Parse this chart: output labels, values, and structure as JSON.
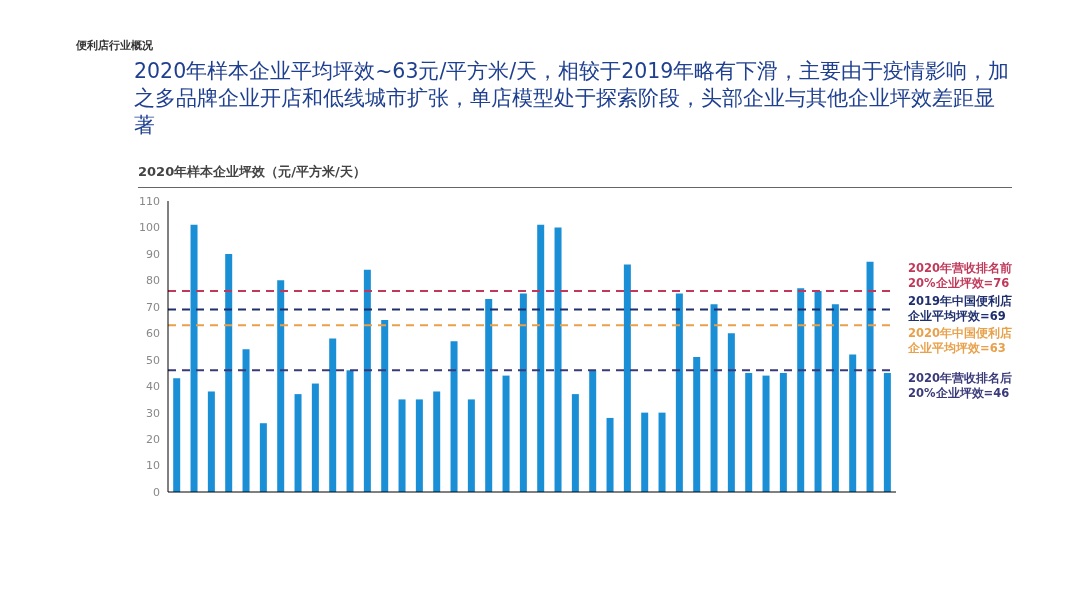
{
  "chart_data": {
    "type": "bar",
    "title": "2020年样本企业平均坪效~63元/平方米/天，相较于2019年略有下滑，主要由于疫情影响，加之多品牌企业开店和低线城市扩张，单店模型处于探索阶段，头部企业与其他企业坪效差距显著",
    "subtitle": "2020年样本企业坪效（元/平方米/天）",
    "annotations": [
      "便利店行业概况"
    ],
    "categories": [
      null,
      null,
      null,
      null,
      null,
      null,
      null,
      null,
      null,
      null,
      null,
      null,
      null,
      null,
      null,
      null,
      null,
      null,
      null,
      null,
      null,
      null,
      null,
      null,
      null,
      null,
      null,
      null,
      null,
      null,
      null,
      null,
      null,
      null,
      null,
      null,
      null,
      null,
      null,
      null,
      null,
      null
    ],
    "values": [
      43,
      101,
      38,
      90,
      54,
      26,
      80,
      37,
      41,
      58,
      46,
      84,
      65,
      35,
      35,
      38,
      57,
      35,
      73,
      44,
      75,
      101,
      100,
      37,
      46,
      28,
      86,
      30,
      30,
      75,
      51,
      71,
      60,
      45,
      44,
      45,
      77,
      76,
      71,
      52,
      87,
      45
    ],
    "color": "#1a8fd6",
    "ylim": [
      0,
      110
    ],
    "yticks": [
      0,
      10,
      20,
      30,
      40,
      50,
      60,
      70,
      80,
      90,
      100,
      110
    ],
    "tick_labels": "y",
    "ref_lines": [
      {
        "axis": "y",
        "value": 76,
        "label": "2020年营收排名前20%企业坪效=76",
        "color": "#c0395a",
        "line_style": "dashed"
      },
      {
        "axis": "y",
        "value": 69,
        "label": "2019年中国便利店企业平均坪效=69",
        "color": "#1f2f6e",
        "line_style": "dashed"
      },
      {
        "axis": "y",
        "value": 63,
        "label": "2020年中国便利店企业平均坪效=63",
        "color": "#e8a04a",
        "line_style": "dashed"
      },
      {
        "axis": "y",
        "value": 46,
        "label": "2020年营收排名后20%企业坪效=46",
        "color": "#3a3a7a",
        "line_style": "dashed"
      }
    ]
  }
}
